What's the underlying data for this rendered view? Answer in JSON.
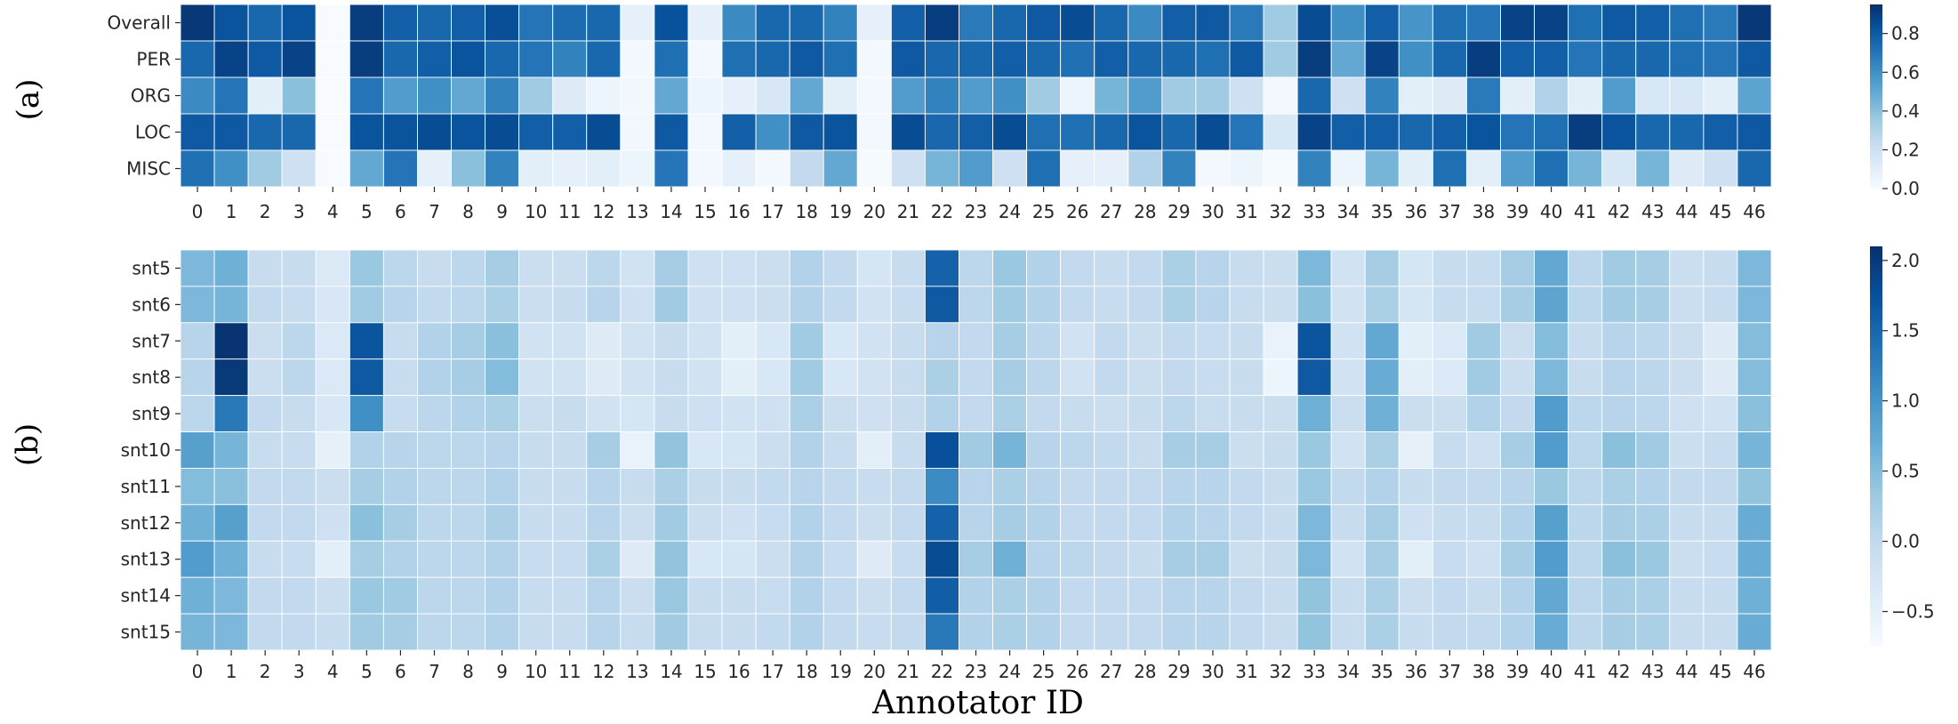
{
  "chart_data": [
    {
      "type": "heatmap",
      "panel_label": "(a)",
      "xlabel": "",
      "colormap": "Blues",
      "colorbar": {
        "min": 0.0,
        "max": 0.95,
        "ticks": [
          "0.0",
          "0.2",
          "0.4",
          "0.6",
          "0.8"
        ]
      },
      "columns": [
        "0",
        "1",
        "2",
        "3",
        "4",
        "5",
        "6",
        "7",
        "8",
        "9",
        "10",
        "11",
        "12",
        "13",
        "14",
        "15",
        "16",
        "17",
        "18",
        "19",
        "20",
        "21",
        "22",
        "23",
        "24",
        "25",
        "26",
        "27",
        "28",
        "29",
        "30",
        "31",
        "32",
        "33",
        "34",
        "35",
        "36",
        "37",
        "38",
        "39",
        "40",
        "41",
        "42",
        "43",
        "44",
        "45",
        "46"
      ],
      "rows": [
        "Overall",
        "PER",
        "ORG",
        "LOC",
        "MISC"
      ],
      "values": [
        [
          0.92,
          0.82,
          0.75,
          0.82,
          0.0,
          0.9,
          0.78,
          0.75,
          0.78,
          0.84,
          0.7,
          0.73,
          0.75,
          0.08,
          0.83,
          0.08,
          0.62,
          0.75,
          0.75,
          0.65,
          0.08,
          0.78,
          0.9,
          0.68,
          0.75,
          0.8,
          0.85,
          0.75,
          0.62,
          0.78,
          0.8,
          0.68,
          0.35,
          0.85,
          0.6,
          0.78,
          0.58,
          0.72,
          0.7,
          0.88,
          0.88,
          0.72,
          0.8,
          0.78,
          0.72,
          0.68,
          0.92
        ],
        [
          0.75,
          0.88,
          0.8,
          0.88,
          0.0,
          0.9,
          0.75,
          0.78,
          0.82,
          0.75,
          0.7,
          0.65,
          0.75,
          0.02,
          0.72,
          0.02,
          0.72,
          0.75,
          0.8,
          0.72,
          0.02,
          0.8,
          0.75,
          0.75,
          0.78,
          0.75,
          0.72,
          0.78,
          0.75,
          0.75,
          0.72,
          0.8,
          0.35,
          0.9,
          0.5,
          0.88,
          0.6,
          0.75,
          0.9,
          0.78,
          0.78,
          0.7,
          0.75,
          0.75,
          0.72,
          0.7,
          0.8
        ],
        [
          0.62,
          0.7,
          0.1,
          0.4,
          0.0,
          0.7,
          0.55,
          0.6,
          0.5,
          0.65,
          0.35,
          0.12,
          0.05,
          0.03,
          0.5,
          0.05,
          0.08,
          0.15,
          0.5,
          0.1,
          0.02,
          0.55,
          0.65,
          0.55,
          0.6,
          0.35,
          0.05,
          0.45,
          0.55,
          0.35,
          0.35,
          0.2,
          0.02,
          0.75,
          0.2,
          0.65,
          0.1,
          0.12,
          0.68,
          0.1,
          0.3,
          0.1,
          0.55,
          0.15,
          0.15,
          0.1,
          0.52
        ],
        [
          0.8,
          0.8,
          0.75,
          0.75,
          0.0,
          0.82,
          0.82,
          0.85,
          0.82,
          0.85,
          0.78,
          0.78,
          0.85,
          0.03,
          0.8,
          0.02,
          0.78,
          0.6,
          0.8,
          0.82,
          0.02,
          0.85,
          0.75,
          0.78,
          0.85,
          0.72,
          0.72,
          0.75,
          0.82,
          0.75,
          0.85,
          0.7,
          0.15,
          0.88,
          0.78,
          0.78,
          0.75,
          0.78,
          0.82,
          0.7,
          0.72,
          0.9,
          0.82,
          0.75,
          0.75,
          0.78,
          0.8
        ],
        [
          0.72,
          0.6,
          0.35,
          0.2,
          0.0,
          0.5,
          0.7,
          0.08,
          0.4,
          0.65,
          0.1,
          0.08,
          0.1,
          0.05,
          0.7,
          0.02,
          0.08,
          0.02,
          0.25,
          0.5,
          0.01,
          0.2,
          0.45,
          0.55,
          0.2,
          0.72,
          0.08,
          0.08,
          0.3,
          0.65,
          0.02,
          0.05,
          0.01,
          0.65,
          0.05,
          0.45,
          0.1,
          0.72,
          0.1,
          0.55,
          0.72,
          0.45,
          0.15,
          0.45,
          0.12,
          0.2,
          0.75
        ]
      ]
    },
    {
      "type": "heatmap",
      "panel_label": "(b)",
      "xlabel": "Annotator ID",
      "colormap": "Blues",
      "colorbar": {
        "min": -0.75,
        "max": 2.1,
        "ticks": [
          "−0.5",
          "0.0",
          "0.5",
          "1.0",
          "1.5",
          "2.0"
        ]
      },
      "columns": [
        "0",
        "1",
        "2",
        "3",
        "4",
        "5",
        "6",
        "7",
        "8",
        "9",
        "10",
        "11",
        "12",
        "13",
        "14",
        "15",
        "16",
        "17",
        "18",
        "19",
        "20",
        "21",
        "22",
        "23",
        "24",
        "25",
        "26",
        "27",
        "28",
        "29",
        "30",
        "31",
        "32",
        "33",
        "34",
        "35",
        "36",
        "37",
        "38",
        "39",
        "40",
        "41",
        "42",
        "43",
        "44",
        "45",
        "46"
      ],
      "rows": [
        "snt5",
        "snt6",
        "snt7",
        "snt8",
        "snt9",
        "snt10",
        "snt11",
        "snt12",
        "snt13",
        "snt14",
        "snt15"
      ],
      "values": [
        [
          0.55,
          0.65,
          -0.05,
          -0.05,
          -0.35,
          0.35,
          0.05,
          -0.05,
          0.05,
          0.25,
          -0.1,
          -0.1,
          0.05,
          -0.2,
          0.25,
          -0.15,
          -0.15,
          -0.1,
          0.15,
          0.0,
          -0.25,
          -0.05,
          1.55,
          0.05,
          0.35,
          0.15,
          0.0,
          -0.05,
          0.0,
          0.2,
          0.1,
          -0.05,
          -0.1,
          0.55,
          -0.2,
          0.25,
          -0.25,
          -0.05,
          -0.05,
          0.25,
          0.75,
          0.05,
          0.3,
          0.25,
          -0.1,
          -0.05,
          0.55
        ],
        [
          0.55,
          0.6,
          0.0,
          -0.05,
          -0.3,
          0.3,
          0.1,
          0.0,
          0.05,
          0.2,
          -0.1,
          -0.05,
          0.1,
          -0.15,
          0.3,
          -0.15,
          -0.15,
          -0.1,
          0.15,
          0.0,
          -0.2,
          -0.05,
          1.65,
          0.05,
          0.3,
          0.15,
          0.0,
          -0.05,
          0.0,
          0.2,
          0.1,
          -0.05,
          -0.1,
          0.45,
          -0.2,
          0.2,
          -0.25,
          -0.05,
          -0.05,
          0.25,
          0.8,
          0.05,
          0.3,
          0.25,
          -0.1,
          -0.05,
          0.55
        ],
        [
          0.1,
          2.05,
          -0.1,
          0.05,
          -0.35,
          1.7,
          -0.05,
          0.15,
          0.25,
          0.45,
          -0.2,
          -0.2,
          -0.4,
          -0.2,
          -0.05,
          -0.2,
          -0.45,
          -0.3,
          0.3,
          -0.3,
          -0.2,
          -0.05,
          0.1,
          0.0,
          0.25,
          0.05,
          -0.2,
          0.0,
          -0.1,
          0.0,
          -0.05,
          -0.05,
          -0.55,
          1.7,
          -0.2,
          0.75,
          -0.45,
          -0.35,
          0.3,
          -0.1,
          0.5,
          -0.05,
          0.1,
          0.05,
          -0.1,
          -0.4,
          0.5
        ],
        [
          0.1,
          2.0,
          -0.1,
          0.05,
          -0.35,
          1.65,
          -0.05,
          0.15,
          0.25,
          0.5,
          -0.2,
          -0.2,
          -0.4,
          -0.2,
          -0.05,
          -0.2,
          -0.45,
          -0.3,
          0.3,
          -0.3,
          -0.2,
          -0.05,
          0.2,
          0.0,
          0.25,
          0.05,
          -0.2,
          0.0,
          -0.1,
          0.0,
          -0.05,
          -0.05,
          -0.6,
          1.65,
          -0.2,
          0.7,
          -0.45,
          -0.35,
          0.3,
          -0.1,
          0.55,
          -0.05,
          0.1,
          0.05,
          -0.1,
          -0.4,
          0.5
        ],
        [
          0.05,
          1.3,
          0.0,
          -0.05,
          -0.3,
          1.05,
          -0.05,
          0.05,
          0.15,
          0.2,
          -0.1,
          -0.05,
          -0.2,
          -0.25,
          -0.05,
          -0.15,
          -0.2,
          -0.15,
          0.2,
          -0.1,
          -0.15,
          -0.05,
          0.15,
          0.0,
          0.2,
          0.0,
          -0.05,
          -0.1,
          -0.05,
          0.05,
          -0.05,
          -0.05,
          -0.1,
          0.65,
          -0.1,
          0.65,
          -0.1,
          -0.1,
          0.15,
          0.0,
          0.9,
          0.05,
          0.1,
          0.05,
          -0.15,
          -0.2,
          0.45
        ],
        [
          0.85,
          0.6,
          -0.05,
          -0.05,
          -0.5,
          0.15,
          0.1,
          0.05,
          0.05,
          0.1,
          -0.05,
          -0.05,
          0.25,
          -0.55,
          0.4,
          -0.3,
          -0.25,
          -0.1,
          0.15,
          -0.05,
          -0.45,
          -0.05,
          1.75,
          0.3,
          0.6,
          0.1,
          0.05,
          0.0,
          -0.05,
          0.25,
          0.25,
          -0.1,
          -0.05,
          0.35,
          -0.2,
          0.2,
          -0.5,
          -0.05,
          -0.15,
          0.25,
          0.9,
          0.05,
          0.45,
          0.3,
          -0.1,
          -0.05,
          0.6
        ],
        [
          0.5,
          0.45,
          0.0,
          0.0,
          -0.1,
          0.25,
          0.15,
          0.05,
          0.05,
          0.15,
          -0.05,
          -0.05,
          0.1,
          -0.05,
          0.2,
          -0.05,
          -0.05,
          0.0,
          0.1,
          0.0,
          -0.05,
          0.0,
          1.1,
          0.1,
          0.2,
          0.1,
          0.0,
          0.0,
          0.0,
          0.1,
          0.1,
          0.0,
          -0.05,
          0.35,
          0.0,
          0.15,
          -0.05,
          0.0,
          0.0,
          0.1,
          0.35,
          0.05,
          0.2,
          0.15,
          0.0,
          0.0,
          0.4
        ],
        [
          0.65,
          0.85,
          0.0,
          0.0,
          -0.15,
          0.45,
          0.25,
          0.05,
          0.05,
          0.2,
          -0.05,
          -0.05,
          0.1,
          -0.1,
          0.3,
          -0.1,
          -0.15,
          -0.05,
          0.15,
          0.0,
          -0.1,
          0.0,
          1.55,
          0.1,
          0.25,
          0.15,
          0.0,
          0.0,
          0.0,
          0.15,
          0.1,
          0.0,
          -0.05,
          0.55,
          -0.05,
          0.25,
          -0.15,
          -0.05,
          -0.05,
          0.15,
          0.85,
          0.05,
          0.25,
          0.2,
          -0.05,
          -0.05,
          0.7
        ],
        [
          0.9,
          0.65,
          -0.05,
          -0.05,
          -0.45,
          0.25,
          0.15,
          0.05,
          0.05,
          0.15,
          -0.05,
          -0.05,
          0.2,
          -0.4,
          0.4,
          -0.3,
          -0.25,
          -0.1,
          0.15,
          -0.05,
          -0.4,
          -0.05,
          1.8,
          0.25,
          0.65,
          0.1,
          0.05,
          0.0,
          -0.05,
          0.25,
          0.25,
          -0.1,
          -0.05,
          0.55,
          -0.2,
          0.25,
          -0.45,
          -0.05,
          -0.15,
          0.25,
          0.9,
          0.05,
          0.45,
          0.35,
          -0.1,
          -0.05,
          0.7
        ],
        [
          0.65,
          0.55,
          0.0,
          0.0,
          -0.1,
          0.35,
          0.3,
          0.05,
          0.05,
          0.15,
          -0.05,
          -0.05,
          0.1,
          -0.1,
          0.35,
          -0.05,
          -0.05,
          -0.05,
          0.15,
          0.0,
          -0.1,
          0.0,
          1.6,
          0.15,
          0.2,
          0.15,
          0.0,
          0.0,
          0.0,
          0.1,
          0.1,
          0.0,
          -0.05,
          0.4,
          -0.05,
          0.2,
          -0.1,
          0.0,
          -0.05,
          0.15,
          0.75,
          0.05,
          0.25,
          0.2,
          -0.05,
          -0.05,
          0.65
        ],
        [
          0.6,
          0.55,
          0.0,
          0.0,
          -0.05,
          0.3,
          0.25,
          0.05,
          0.05,
          0.15,
          -0.05,
          -0.05,
          0.1,
          -0.05,
          0.3,
          -0.05,
          -0.05,
          0.0,
          0.15,
          0.0,
          -0.05,
          0.0,
          1.3,
          0.15,
          0.2,
          0.15,
          0.0,
          0.0,
          0.0,
          0.1,
          0.1,
          0.0,
          -0.05,
          0.4,
          -0.05,
          0.2,
          -0.05,
          0.0,
          0.0,
          0.15,
          0.7,
          0.05,
          0.25,
          0.2,
          -0.05,
          -0.05,
          0.7
        ]
      ]
    }
  ]
}
